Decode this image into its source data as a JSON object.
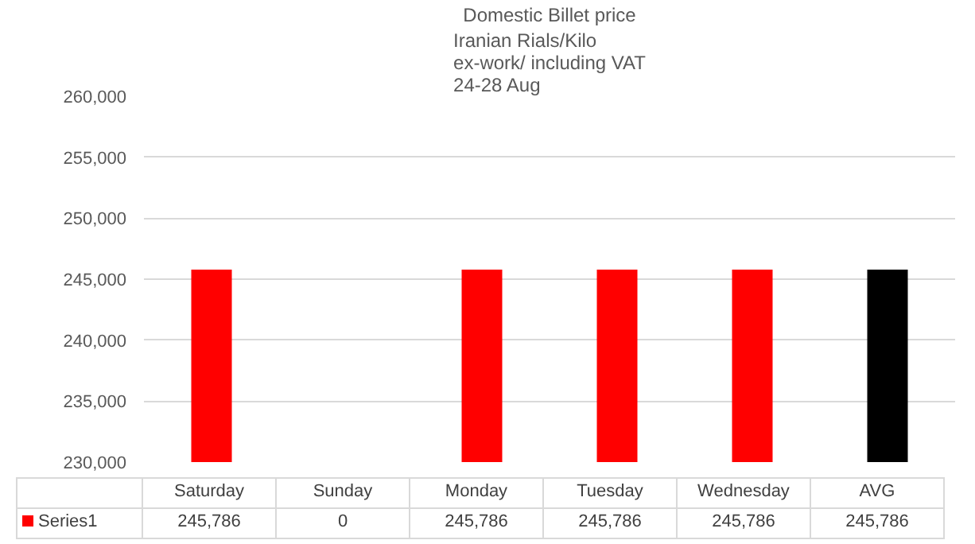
{
  "chart_data": {
    "type": "bar",
    "title": "Domestic Billet price",
    "subtitle": "Iranian Rials/Kilo\nex-work/ including VAT\n24-28  Aug",
    "categories": [
      "Saturday",
      "Sunday",
      "Monday",
      "Tuesday",
      "Wednesday",
      "AVG"
    ],
    "series": [
      {
        "name": "Series1",
        "color": "#ff0000",
        "colors": [
          "#ff0000",
          "#ff0000",
          "#ff0000",
          "#ff0000",
          "#ff0000",
          "#000000"
        ],
        "values": [
          245786,
          null,
          245786,
          245786,
          245786,
          245786
        ],
        "value_labels": [
          "245,786",
          "0",
          "245,786",
          "245,786",
          "245,786",
          "245,786"
        ]
      }
    ],
    "ylim": [
      230000,
      260000
    ],
    "yticks": [
      {
        "value": 230000,
        "label": "230,000"
      },
      {
        "value": 235000,
        "label": "235,000"
      },
      {
        "value": 240000,
        "label": "240,000"
      },
      {
        "value": 245000,
        "label": "245,000"
      },
      {
        "value": 250000,
        "label": "250,000"
      },
      {
        "value": 255000,
        "label": "255,000"
      },
      {
        "value": 260000,
        "label": "260,000"
      }
    ],
    "grid": "y",
    "legend": "bottom"
  }
}
